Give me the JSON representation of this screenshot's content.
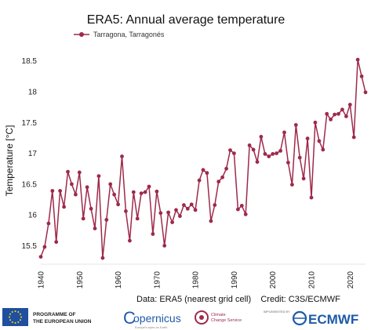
{
  "chart_data": {
    "type": "line",
    "title": "ERA5: Annual average temperature",
    "ylabel": "Temperature [°C]",
    "xlabel": "",
    "x_ticks": [
      1940,
      1950,
      1960,
      1970,
      1980,
      1990,
      2000,
      2010,
      2020
    ],
    "y_ticks": [
      "15.5",
      "16",
      "16.5",
      "17",
      "17.5",
      "18",
      "18.5"
    ],
    "xlim": [
      1940,
      2024
    ],
    "ylim": [
      15.2,
      18.7
    ],
    "grid": false,
    "legend_position": "top-left",
    "series": [
      {
        "name": "Tarragona, Tarragonés",
        "color": "#9e2a4b",
        "x": [
          1940,
          1941,
          1942,
          1943,
          1944,
          1945,
          1946,
          1947,
          1948,
          1949,
          1950,
          1951,
          1952,
          1953,
          1954,
          1955,
          1956,
          1957,
          1958,
          1959,
          1960,
          1961,
          1962,
          1963,
          1964,
          1965,
          1966,
          1967,
          1968,
          1969,
          1970,
          1971,
          1972,
          1973,
          1974,
          1975,
          1976,
          1977,
          1978,
          1979,
          1980,
          1981,
          1982,
          1983,
          1984,
          1985,
          1986,
          1987,
          1988,
          1989,
          1990,
          1991,
          1992,
          1993,
          1994,
          1995,
          1996,
          1997,
          1998,
          1999,
          2000,
          2001,
          2002,
          2003,
          2004,
          2005,
          2006,
          2007,
          2008,
          2009,
          2010,
          2011,
          2012,
          2013,
          2014,
          2015,
          2016,
          2017,
          2018,
          2019,
          2020,
          2021,
          2022,
          2023,
          2024
        ],
        "values": [
          15.32,
          15.48,
          15.86,
          16.39,
          15.56,
          16.39,
          16.13,
          16.7,
          16.5,
          16.33,
          16.69,
          15.94,
          16.45,
          16.1,
          15.78,
          16.63,
          15.3,
          15.92,
          16.5,
          16.33,
          16.17,
          16.95,
          16.06,
          15.58,
          16.37,
          15.94,
          16.35,
          16.37,
          16.46,
          15.69,
          16.38,
          16.03,
          15.5,
          16.04,
          15.88,
          16.08,
          15.98,
          16.16,
          16.1,
          16.17,
          16.08,
          16.56,
          16.73,
          16.68,
          15.9,
          16.16,
          16.54,
          16.61,
          16.75,
          17.05,
          17.0,
          16.09,
          16.15,
          16.01,
          17.13,
          17.06,
          16.86,
          17.27,
          16.99,
          16.95,
          16.99,
          17.0,
          17.04,
          17.34,
          16.85,
          16.49,
          17.46,
          16.93,
          16.59,
          17.24,
          16.28,
          17.5,
          17.2,
          17.06,
          17.64,
          17.55,
          17.63,
          17.64,
          17.71,
          17.6,
          17.79,
          17.26,
          18.52,
          18.25,
          17.99
        ]
      }
    ]
  },
  "footer": {
    "credit_text": "Data: ERA5 (nearest grid cell)    Credit: C3S/ECMWF",
    "eu_line1": "PROGRAMME OF",
    "eu_line2": "THE EUROPEAN UNION",
    "copernicus_name": "opernicus",
    "copernicus_c": "C",
    "copernicus_tagline": "Europe's eyes on Earth",
    "c3s_line1": "Climate",
    "c3s_line2": "Change Service",
    "ecmwf_implemented": "IMPLEMENTED BY",
    "ecmwf_name": "ECMWF"
  }
}
